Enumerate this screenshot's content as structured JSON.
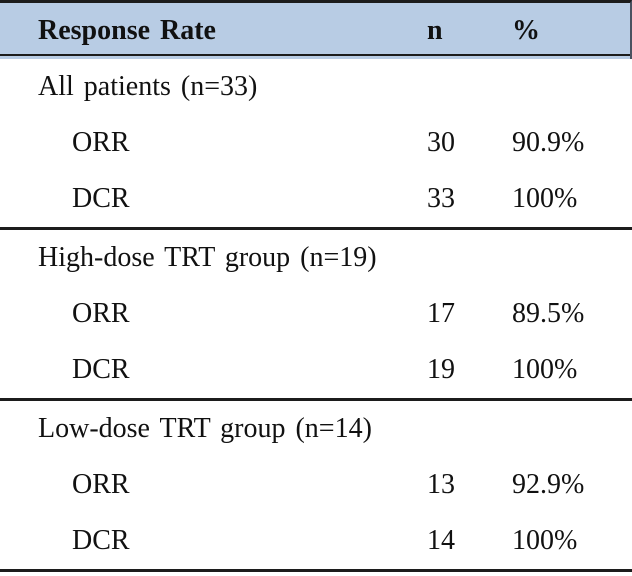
{
  "table": {
    "columns": {
      "label": "Response Rate",
      "n": "n",
      "pct": "%"
    },
    "sections": [
      {
        "label": "All patients (n=33)",
        "rows": [
          {
            "measure": "ORR",
            "n": "30",
            "pct": "90.9%"
          },
          {
            "measure": "DCR",
            "n": "33",
            "pct": "100%"
          }
        ]
      },
      {
        "label": "High-dose TRT group (n=19)",
        "rows": [
          {
            "measure": "ORR",
            "n": "17",
            "pct": "89.5%"
          },
          {
            "measure": "DCR",
            "n": "19",
            "pct": "100%"
          }
        ]
      },
      {
        "label": "Low-dose TRT group (n=14)",
        "rows": [
          {
            "measure": "ORR",
            "n": "13",
            "pct": "92.9%"
          },
          {
            "measure": "DCR",
            "n": "14",
            "pct": "100%"
          }
        ]
      }
    ],
    "colors": {
      "header_bg": "#b8cce4",
      "rule": "#1c1c1c",
      "text": "#111111"
    }
  }
}
